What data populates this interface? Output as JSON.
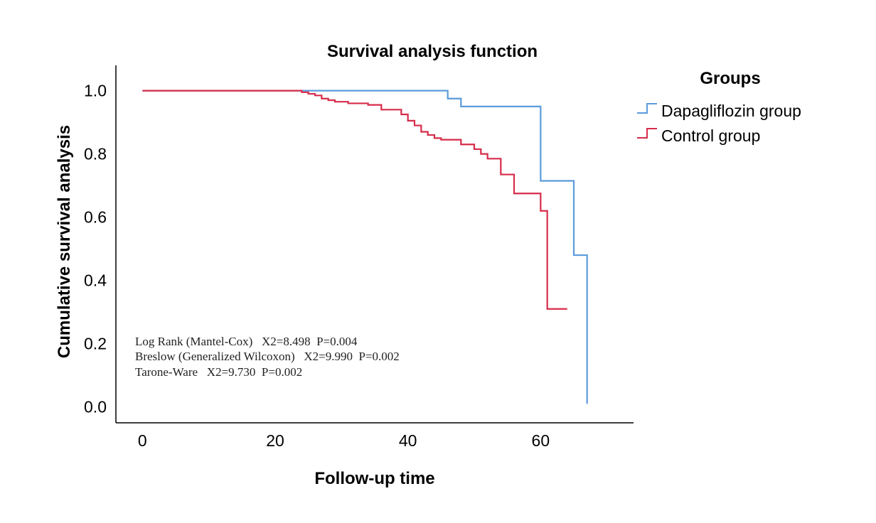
{
  "chart_data": {
    "type": "line",
    "title": "Survival analysis function",
    "xlabel": "Follow-up time",
    "ylabel": "Cumulative survival analysis",
    "xlim": [
      -4,
      74
    ],
    "ylim": [
      -0.05,
      1.08
    ],
    "x_ticks": [
      0,
      20,
      40,
      60
    ],
    "y_ticks": [
      0.0,
      0.2,
      0.4,
      0.6,
      0.8,
      1.0
    ],
    "x_tick_labels": [
      "0",
      "20",
      "40",
      "60"
    ],
    "y_tick_labels": [
      "0.0",
      "0.2",
      "0.4",
      "0.6",
      "0.8",
      "1.0"
    ],
    "grid": false,
    "legend": {
      "title": "Groups",
      "position": "right",
      "entries": [
        "Dapagliflozin group",
        "Control group"
      ]
    },
    "series": [
      {
        "name": "Dapagliflozin group",
        "color": "#5b9bdc",
        "steps": [
          [
            0,
            1.0
          ],
          [
            46,
            0.975
          ],
          [
            48,
            0.95
          ],
          [
            60,
            0.715
          ],
          [
            65,
            0.48
          ],
          [
            67,
            0.01
          ]
        ],
        "end_x": 67
      },
      {
        "name": "Control group",
        "color": "#d62c4a",
        "steps": [
          [
            0,
            1.0
          ],
          [
            24,
            0.995
          ],
          [
            25,
            0.99
          ],
          [
            26,
            0.985
          ],
          [
            27,
            0.975
          ],
          [
            28,
            0.97
          ],
          [
            29,
            0.965
          ],
          [
            31,
            0.96
          ],
          [
            34,
            0.955
          ],
          [
            36,
            0.94
          ],
          [
            39,
            0.925
          ],
          [
            40,
            0.905
          ],
          [
            41,
            0.89
          ],
          [
            42,
            0.87
          ],
          [
            43,
            0.86
          ],
          [
            44,
            0.85
          ],
          [
            45,
            0.845
          ],
          [
            48,
            0.83
          ],
          [
            50,
            0.815
          ],
          [
            51,
            0.8
          ],
          [
            52,
            0.785
          ],
          [
            54,
            0.735
          ],
          [
            56,
            0.675
          ],
          [
            60,
            0.62
          ],
          [
            61,
            0.31
          ]
        ],
        "end_x": 64
      }
    ],
    "annotations": [
      "Log Rank (Mantel-Cox)   X2=8.498  P=0.004",
      "Breslow (Generalized Wilcoxon)   X2=9.990  P=0.002",
      "Tarone-Ware   X2=9.730  P=0.002"
    ]
  }
}
